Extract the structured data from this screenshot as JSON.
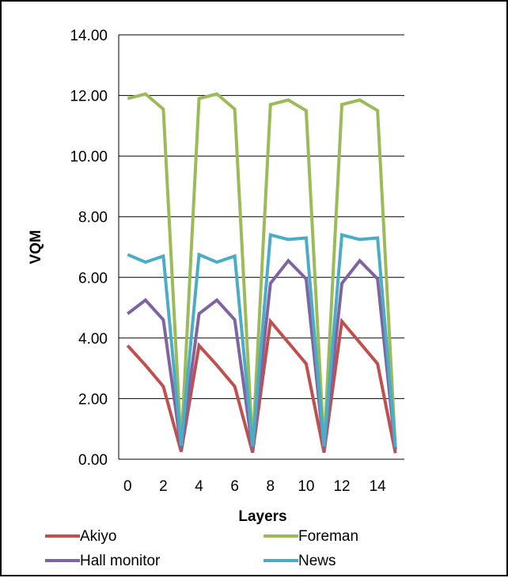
{
  "chart_data": {
    "type": "line",
    "title": "",
    "xlabel": "Layers",
    "ylabel": "VQM",
    "x": [
      0,
      1,
      2,
      3,
      4,
      5,
      6,
      7,
      8,
      9,
      10,
      11,
      12,
      13,
      14,
      15
    ],
    "xticks": [
      "0",
      "2",
      "4",
      "6",
      "8",
      "10",
      "12",
      "14"
    ],
    "yticks": [
      "0.00",
      "2.00",
      "4.00",
      "6.00",
      "8.00",
      "10.00",
      "12.00",
      "14.00"
    ],
    "xlim": [
      -0.5,
      15.5
    ],
    "ylim": [
      0,
      14
    ],
    "grid": "horizontal major gridlines",
    "legend_position": "bottom",
    "series": [
      {
        "name": "Akiyo",
        "color": "#c0504d",
        "values": [
          3.75,
          3.1,
          2.4,
          0.25,
          3.75,
          3.1,
          2.4,
          0.22,
          4.55,
          3.85,
          3.15,
          0.22,
          4.55,
          3.85,
          3.15,
          0.2
        ]
      },
      {
        "name": "Foreman",
        "color": "#9bbb59",
        "values": [
          11.9,
          12.05,
          11.55,
          0.4,
          11.9,
          12.05,
          11.55,
          0.38,
          11.7,
          11.85,
          11.5,
          0.38,
          11.7,
          11.85,
          11.5,
          0.35
        ]
      },
      {
        "name": "Hall monitor",
        "color": "#8064a2",
        "values": [
          4.8,
          5.25,
          4.6,
          0.35,
          4.8,
          5.25,
          4.6,
          0.32,
          5.8,
          6.55,
          5.95,
          0.32,
          5.8,
          6.55,
          5.95,
          0.3
        ]
      },
      {
        "name": "News",
        "color": "#4bacc6",
        "values": [
          6.75,
          6.5,
          6.7,
          0.45,
          6.75,
          6.5,
          6.7,
          0.42,
          7.4,
          7.25,
          7.3,
          0.42,
          7.4,
          7.25,
          7.3,
          0.4
        ]
      }
    ]
  }
}
